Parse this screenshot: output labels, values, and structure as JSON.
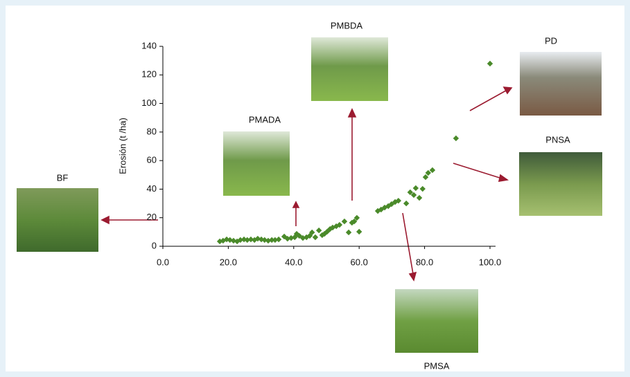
{
  "chart_data": {
    "type": "scatter",
    "y_label": "Erosión (t /ha)",
    "color": "#4a8a2a",
    "x": [
      17.4,
      18.4,
      19.5,
      20.5,
      21.6,
      22.7,
      23.7,
      24.8,
      25.8,
      26.9,
      28.0,
      29.0,
      30.1,
      31.1,
      32.2,
      33.3,
      34.3,
      35.4,
      37.1,
      38.1,
      39.2,
      40.3,
      40.9,
      41.7,
      42.8,
      43.9,
      44.9,
      45.6,
      46.6,
      47.7,
      48.7,
      49.4,
      50.2,
      51.1,
      51.9,
      53.0,
      54.0,
      55.5,
      56.8,
      57.8,
      58.5,
      59.3,
      60.0,
      65.7,
      66.7,
      67.8,
      68.9,
      69.9,
      71.0,
      72.0,
      74.4,
      75.6,
      76.7,
      77.3,
      78.4,
      79.4,
      80.3,
      81.1,
      82.4,
      89.6,
      100.0
    ],
    "values": [
      3.4,
      3.9,
      4.8,
      4.4,
      3.9,
      3.4,
      4.4,
      4.8,
      4.4,
      4.8,
      4.4,
      5.3,
      4.8,
      4.4,
      3.9,
      4.4,
      4.4,
      4.8,
      6.8,
      5.3,
      5.8,
      6.3,
      8.7,
      7.3,
      5.8,
      6.3,
      7.3,
      9.7,
      6.3,
      11.1,
      7.8,
      8.7,
      10.2,
      12.1,
      13.1,
      14.0,
      15.0,
      17.4,
      9.7,
      16.5,
      17.4,
      19.9,
      10.2,
      24.7,
      25.7,
      27.1,
      28.1,
      29.5,
      31.0,
      31.9,
      30.0,
      37.8,
      35.9,
      40.7,
      33.9,
      40.2,
      48.4,
      51.4,
      53.3,
      75.6,
      127.9
    ],
    "xlim": [
      0,
      100
    ],
    "ylim": [
      0,
      140
    ],
    "xticks": [
      {
        "value": 0,
        "label": "0.0"
      },
      {
        "value": 20,
        "label": "20.0"
      },
      {
        "value": 40,
        "label": "40.0"
      },
      {
        "value": 60,
        "label": "60.0"
      },
      {
        "value": 80,
        "label": "80.0"
      },
      {
        "value": 100,
        "label": "100.0"
      }
    ],
    "yticks": [
      0,
      20,
      40,
      60,
      80,
      100,
      120,
      140
    ],
    "annotations": [
      "BF",
      "PMADA",
      "PMBDA",
      "PD",
      "PNSA",
      "PMSA"
    ]
  }
}
